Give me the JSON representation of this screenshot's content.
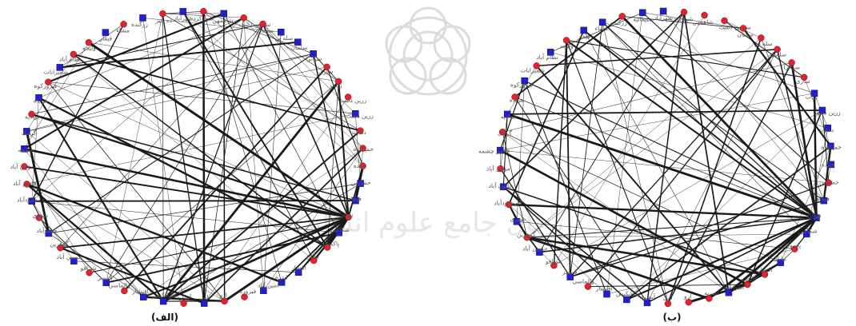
{
  "panels": [
    {
      "caption": "(الف)",
      "nodes": [
        {
          "label": "قیچاق",
          "shape": "square"
        },
        {
          "label": "تهران",
          "shape": "circle"
        },
        {
          "label": "شکاکین",
          "shape": "square"
        },
        {
          "label": "پاکدشت",
          "shape": "circle"
        },
        {
          "label": "بیابان",
          "shape": "circle"
        },
        {
          "label": "افشار",
          "shape": "square"
        },
        {
          "label": "اندره",
          "shape": "square"
        },
        {
          "label": "امین آباد",
          "shape": "square"
        },
        {
          "label": "فیروزه",
          "shape": "circle"
        },
        {
          "label": "ارو",
          "shape": "circle"
        },
        {
          "label": "امل",
          "shape": "square"
        },
        {
          "label": "آبسرد",
          "shape": "circle"
        },
        {
          "label": "سرانکیش",
          "shape": "square"
        },
        {
          "label": "اقتشار",
          "shape": "square"
        },
        {
          "label": "والماسی",
          "shape": "circle"
        },
        {
          "label": "قمصر",
          "shape": "square"
        },
        {
          "label": "شراقو",
          "shape": "circle"
        },
        {
          "label": "حسین آباد",
          "shape": "square"
        },
        {
          "label": "گوهرین",
          "shape": "circle"
        },
        {
          "label": "جعفرآباد",
          "shape": "square"
        },
        {
          "label": "شهری",
          "shape": "circle"
        },
        {
          "label": "محمودآباد",
          "shape": "square"
        },
        {
          "label": "قاسم آباد",
          "shape": "circle"
        },
        {
          "label": "مؤمن آباد",
          "shape": "circle"
        },
        {
          "label": "چشمه",
          "shape": "square"
        },
        {
          "label": "گرمک",
          "shape": "square"
        },
        {
          "label": "جوادیه",
          "shape": "circle"
        },
        {
          "label": "هرنده",
          "shape": "square"
        },
        {
          "label": "فیروزکوه",
          "shape": "circle"
        },
        {
          "label": "شمیرانات",
          "shape": "square"
        },
        {
          "label": "نظام آباد",
          "shape": "circle"
        },
        {
          "label": "ولیجه",
          "shape": "circle"
        },
        {
          "label": "قیفار",
          "shape": "square"
        },
        {
          "label": "مشاء",
          "shape": "circle"
        },
        {
          "label": "زرگنده",
          "shape": "square"
        },
        {
          "label": "ده خیر",
          "shape": "circle"
        },
        {
          "label": "شهرآباد",
          "shape": "square"
        },
        {
          "label": "شهرکرد",
          "shape": "circle"
        },
        {
          "label": "شاهمهن",
          "shape": "square"
        },
        {
          "label": "سیمین دشت",
          "shape": "circle"
        },
        {
          "label": "سمنان",
          "shape": "circle"
        },
        {
          "label": "سله بن",
          "shape": "square"
        },
        {
          "label": "سلمان",
          "shape": "square"
        },
        {
          "label": "سوانرا",
          "shape": "square"
        },
        {
          "label": "ساری",
          "shape": "circle"
        },
        {
          "label": "زیاب",
          "shape": "circle"
        },
        {
          "label": "زرین دشت",
          "shape": "circle"
        },
        {
          "label": "زرین دشت",
          "shape": "square"
        },
        {
          "label": "دماوند",
          "shape": "circle"
        },
        {
          "label": "خمیکنده",
          "shape": "circle"
        },
        {
          "label": "خمده",
          "shape": "circle"
        },
        {
          "label": "حصارین",
          "shape": "square"
        }
      ]
    },
    {
      "caption": "(ب)",
      "nodes": [
        {
          "label": "قیچاق",
          "shape": "square"
        },
        {
          "label": "تهران",
          "shape": "square"
        },
        {
          "label": "شکاکین",
          "shape": "square"
        },
        {
          "label": "پانروه",
          "shape": "circle"
        },
        {
          "label": "بیابان",
          "shape": "square"
        },
        {
          "label": "افشار",
          "shape": "circle"
        },
        {
          "label": "اندره",
          "shape": "circle"
        },
        {
          "label": "امین آباد",
          "shape": "square"
        },
        {
          "label": "امیریه",
          "shape": "circle"
        },
        {
          "label": "ارو",
          "shape": "circle"
        },
        {
          "label": "امل",
          "shape": "circle"
        },
        {
          "label": "آبسرد",
          "shape": "square"
        },
        {
          "label": "سرانکیش",
          "shape": "square"
        },
        {
          "label": "اقتشار",
          "shape": "square"
        },
        {
          "label": "والماسی",
          "shape": "circle"
        },
        {
          "label": "قمصر",
          "shape": "square"
        },
        {
          "label": "شراقو",
          "shape": "circle"
        },
        {
          "label": "حسین آباد",
          "shape": "square"
        },
        {
          "label": "گوهرین",
          "shape": "circle"
        },
        {
          "label": "شهری",
          "shape": "square"
        },
        {
          "label": "محمودآباد",
          "shape": "circle"
        },
        {
          "label": "خاتون آباد",
          "shape": "square"
        },
        {
          "label": "مؤمن آباد",
          "shape": "circle"
        },
        {
          "label": "قاسم چشمه",
          "shape": "square"
        },
        {
          "label": "گرمک",
          "shape": "circle"
        },
        {
          "label": "جوادیه",
          "shape": "square"
        },
        {
          "label": "هرنده",
          "shape": "circle"
        },
        {
          "label": "فیروزکوه",
          "shape": "square"
        },
        {
          "label": "شمیرانات",
          "shape": "circle"
        },
        {
          "label": "نظام آباد",
          "shape": "square"
        },
        {
          "label": "ولیجه",
          "shape": "circle"
        },
        {
          "label": "قیفار",
          "shape": "square"
        },
        {
          "label": "مشاء",
          "shape": "square"
        },
        {
          "label": "زرگنده",
          "shape": "circle"
        },
        {
          "label": "سلیمانیه",
          "shape": "square"
        },
        {
          "label": "شهرآباد",
          "shape": "square"
        },
        {
          "label": "شهرکرد",
          "shape": "circle"
        },
        {
          "label": "شاهمهن",
          "shape": "circle"
        },
        {
          "label": "سیمین دشت",
          "shape": "circle"
        },
        {
          "label": "سمنان",
          "shape": "circle"
        },
        {
          "label": "سله بن",
          "shape": "circle"
        },
        {
          "label": "سلمان",
          "shape": "circle"
        },
        {
          "label": "سوانرا",
          "shape": "circle"
        },
        {
          "label": "ساری",
          "shape": "circle"
        },
        {
          "label": "زیاب",
          "shape": "square"
        },
        {
          "label": "زرین دشت",
          "shape": "square"
        },
        {
          "label": "دماوند",
          "shape": "square"
        },
        {
          "label": "خمیکنده",
          "shape": "square"
        },
        {
          "label": "خمده",
          "shape": "square"
        },
        {
          "label": "حصارین",
          "shape": "circle"
        }
      ]
    }
  ],
  "colors": {
    "circle_node": "#e8202a",
    "square_node": "#1f1fd6",
    "node_outline": "#1a1a1a",
    "edge": "#1a1a1a",
    "label": "#555555",
    "watermark": "#dcdcdc"
  },
  "watermark": {
    "icon": "ornamental-rosette-icon",
    "text": "پرتال جامع علوم انسانی"
  }
}
